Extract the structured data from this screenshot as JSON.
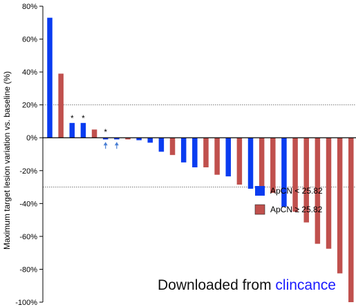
{
  "chart_data": {
    "type": "bar",
    "ylabel": "Maximum target lesion variation vs. baseline (%)",
    "ylim": [
      -100,
      80
    ],
    "yticks": [
      80,
      60,
      40,
      20,
      0,
      -20,
      -40,
      -60,
      -80,
      -100
    ],
    "ytick_labels": [
      "80%",
      "60%",
      "40%",
      "20%",
      "0%",
      "-20%",
      "-40%",
      "-60%",
      "-80%",
      "-100%"
    ],
    "reference_lines": [
      20,
      -30
    ],
    "colors": {
      "low": "#0a3cf0",
      "high": "#c0504d"
    },
    "series": [
      {
        "name": "ApCN < 25.82",
        "color_key": "low"
      },
      {
        "name": "ApCN ≥ 25.82",
        "color_key": "high"
      }
    ],
    "bars": [
      {
        "value": 73,
        "group": "low"
      },
      {
        "value": 39,
        "group": "high"
      },
      {
        "value": 9,
        "group": "low",
        "marker": "*"
      },
      {
        "value": 9,
        "group": "low",
        "marker": "*"
      },
      {
        "value": 5,
        "group": "high"
      },
      {
        "value": -1,
        "group": "low",
        "marker": "*",
        "arrow": true
      },
      {
        "value": -1,
        "group": "low",
        "arrow": true
      },
      {
        "value": -1,
        "group": "high"
      },
      {
        "value": -1.5,
        "group": "low"
      },
      {
        "value": -3,
        "group": "low"
      },
      {
        "value": -8.5,
        "group": "low"
      },
      {
        "value": -10.5,
        "group": "high"
      },
      {
        "value": -15,
        "group": "low"
      },
      {
        "value": -18,
        "group": "low"
      },
      {
        "value": -18,
        "group": "high"
      },
      {
        "value": -22.5,
        "group": "high"
      },
      {
        "value": -23.5,
        "group": "low"
      },
      {
        "value": -28.5,
        "group": "high"
      },
      {
        "value": -31,
        "group": "low"
      },
      {
        "value": -32,
        "group": "high"
      },
      {
        "value": -33.5,
        "group": "high"
      },
      {
        "value": -42,
        "group": "low"
      },
      {
        "value": -45,
        "group": "high"
      },
      {
        "value": -51.5,
        "group": "high"
      },
      {
        "value": -64.5,
        "group": "high"
      },
      {
        "value": -67.5,
        "group": "high"
      },
      {
        "value": -82.5,
        "group": "high"
      },
      {
        "value": -100,
        "group": "high"
      }
    ],
    "watermark": {
      "prefix": "Downloaded from ",
      "link": "clincance",
      "prefix_color": "#111111",
      "link_color": "#1a1aff"
    }
  }
}
